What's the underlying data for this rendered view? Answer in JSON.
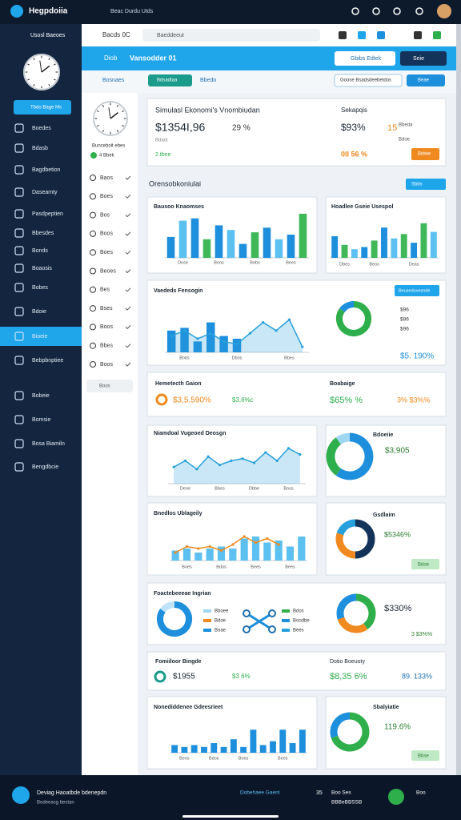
{
  "top_bar": {
    "app_name": "Hegpdoiia",
    "search": "Beac Durdu Utds"
  },
  "browser": {
    "tab": "Usosl Baeoes",
    "nav": "Bacds 0C",
    "url": "Baeddeeut"
  },
  "sidebar": {
    "button": "Tbdo Bage Ms",
    "items": [
      "Boedes",
      "Bdasb",
      "Bagdbetion",
      "Daseamty",
      "Pasdpeptien",
      "Bbesdes",
      "Bonds",
      "Boaosis",
      "Bobes",
      "Bdoie",
      "Bioeie",
      "Bebpbnptiee",
      "Bobeie",
      "Bomsie",
      "Bosa Biamiln",
      "Bengdbcie"
    ]
  },
  "panel": {
    "title": "Bosnaes",
    "clock_label": "Bunceboit ebes",
    "status": "4 Bbek",
    "items": [
      "Baos",
      "Boes",
      "Bos",
      "Boos",
      "Boes",
      "Beoes",
      "Bes",
      "Bses",
      "Boos",
      "Bbes",
      "Boos"
    ],
    "search": "Boos"
  },
  "header": {
    "tab": "Diob",
    "title": "Vansodder 01",
    "button_primary": "Gbibs Edtek",
    "button_secondary": "Seie",
    "subtab_active": "Bdsadtaa",
    "subtab": "Bbedo",
    "wide_button": "Goose Bsadsdeebetdos",
    "small_button": "Beae"
  },
  "summary": {
    "title": "Simulasl Ekonomi's Vnombiudan",
    "value": "$1354I,96",
    "change": "29 %",
    "note": "Bdaot",
    "footer": "2.tbee",
    "right_title": "Sekapqis",
    "right_value": "$93%",
    "right_count": "15",
    "right_note": "Bbeda",
    "right_note2": "Bdoe",
    "right_footer": "0II 56 %",
    "button": "Bdiwe"
  },
  "section": {
    "title": "Orensobkoniulai",
    "button": "Sbbs"
  },
  "wide_card": {
    "button": "Beuseduvesnde",
    "labels": [
      "$96",
      "$86",
      "$96"
    ],
    "value": "$5. 190%"
  },
  "stats_card": {
    "title": "Hemetecth Gaion",
    "value": "$3,5.590%",
    "value2": "$3,6%c",
    "right_title": "Boabaige",
    "right_value": "$65% %",
    "right_value2": "3% $3%%"
  },
  "donut_texts": {
    "a": "$3,905",
    "b": "$5346%",
    "c": "$330%",
    "d": "3 $3%%",
    "e": "119.6%",
    "button": "Bdoe",
    "button2": "Bbse"
  },
  "network_card": {
    "legend": [
      "Bboee",
      "Bdoe",
      "Boae"
    ],
    "legend2": [
      "Bdos",
      "Boodbe",
      "Bees"
    ]
  },
  "stats_card2": {
    "title": "Fomiiloor Bingde",
    "value": "$1955",
    "value2": "$3 6%",
    "right_title": "Dotio Boeuoty",
    "right_value": "$8,35 6%",
    "right_value2": "89. 133%"
  },
  "bottom_bar": {
    "title": "Deviag Haoatbde bdenepdn",
    "subtitle": "Bodeeasg bestan",
    "link": "Dobehaee Gaent",
    "count": "35",
    "stat": "Boo Ses",
    "stat2": "BBBeBBSSB",
    "badge": "Boo"
  },
  "chart_data": [
    {
      "type": "bar",
      "title": "Bausoo Knaomses",
      "categories": [
        null,
        "Dose",
        null,
        null,
        "Boos",
        null,
        null,
        "Bobs",
        null,
        null,
        "Bees",
        null
      ],
      "values": [
        45,
        80,
        85,
        40,
        70,
        60,
        30,
        55,
        65,
        40,
        50,
        95
      ],
      "colors": [
        "#1e8fdc",
        "#5cc0f0",
        "#1e8fdc",
        "#40b85a",
        "#1e8fdc",
        "#5cc0f0",
        "#1e8fdc",
        "#40b85a",
        "#1e8fdc",
        "#5cc0f0",
        "#1e8fdc",
        "#40b85a"
      ],
      "ylim": [
        0,
        100
      ]
    },
    {
      "type": "bar",
      "title": "Hoadlee Gseie Usespol",
      "categories": [
        null,
        "Dbes",
        null,
        null,
        "Beos",
        null,
        null,
        null,
        "Deas",
        null,
        null
      ],
      "values": [
        50,
        30,
        20,
        25,
        40,
        70,
        45,
        55,
        35,
        80,
        60
      ],
      "colors": [
        "#1e8fdc",
        "#40b85a",
        "#5cc0f0",
        "#1e8fdc",
        "#40b85a",
        "#1e8fdc",
        "#5cc0f0",
        "#40b85a",
        "#1e8fdc",
        "#40b85a",
        "#5cc0f0"
      ],
      "ylim": [
        0,
        100
      ]
    },
    {
      "type": "combo",
      "title": "Vaededs Fensogin",
      "categories": [
        null,
        "Bobs",
        null,
        null,
        null,
        "Dbos",
        null,
        null,
        null,
        "Bbes",
        null
      ],
      "series": [
        {
          "kind": "bar",
          "color": "#1e8fdc",
          "values": [
            40,
            45,
            20,
            55,
            30,
            25,
            null,
            null,
            null,
            null,
            null
          ]
        },
        {
          "kind": "area",
          "color": "#28a0dc",
          "values": [
            30,
            40,
            25,
            35,
            20,
            15,
            35,
            55,
            40,
            60,
            10
          ]
        }
      ],
      "ylim": [
        0,
        100
      ]
    },
    {
      "type": "pie",
      "values": [
        85,
        15
      ],
      "colors": [
        "#2fae4c",
        "#1e8fdc"
      ]
    },
    {
      "type": "area",
      "title": "Niamdoal Vugeoed Deosgn",
      "categories": [
        null,
        "Deoe",
        null,
        null,
        "Bbes",
        null,
        null,
        "Dbbe",
        null,
        null,
        "Boss",
        null
      ],
      "values": [
        40,
        55,
        35,
        65,
        45,
        55,
        60,
        50,
        75,
        55,
        85,
        70
      ],
      "color": "#28a0dc",
      "ylim": [
        0,
        100
      ]
    },
    {
      "type": "pie",
      "title": "Bdoeiie",
      "values": [
        60,
        30,
        10
      ],
      "colors": [
        "#1e8fdc",
        "#2fae4c",
        "#9fd6f2"
      ]
    },
    {
      "type": "combo",
      "title": "Bnedlos Ublageily",
      "categories": [
        null,
        "Boes",
        null,
        null,
        "Bdos",
        null,
        null,
        "Bees",
        null,
        null,
        "Bees",
        null
      ],
      "series": [
        {
          "kind": "bar",
          "color": "#5cc0f0",
          "values": [
            25,
            30,
            20,
            30,
            35,
            30,
            55,
            60,
            45,
            50,
            35,
            60
          ]
        },
        {
          "kind": "line",
          "color": "#f08a20",
          "values": [
            20,
            35,
            30,
            35,
            25,
            40,
            60,
            45,
            55,
            40,
            null,
            null
          ]
        }
      ],
      "ylim": [
        0,
        100
      ]
    },
    {
      "type": "pie",
      "title": "Gsdlaim",
      "values": [
        50,
        30,
        20
      ],
      "colors": [
        "#13335a",
        "#f08a20",
        "#28a0dc"
      ]
    },
    {
      "type": "pie",
      "title": "Foactebeeeae Ingrian",
      "values": [
        85,
        15
      ],
      "colors": [
        "#1e8fdc",
        "#bfe3f7"
      ]
    },
    {
      "type": "pie",
      "values": [
        40,
        30,
        30
      ],
      "colors": [
        "#2fae4c",
        "#f08a20",
        "#1e8fdc"
      ]
    },
    {
      "type": "bar",
      "title": "Nonediddenee Gdeesrieet",
      "categories": [
        null,
        "Beos",
        null,
        null,
        "Bdos",
        null,
        null,
        "Boes",
        null,
        null,
        null,
        "Bees",
        null,
        null
      ],
      "values": [
        20,
        15,
        20,
        15,
        25,
        15,
        35,
        15,
        60,
        20,
        30,
        60,
        25,
        60
      ],
      "colors": [
        "#1e8fdc",
        "#1e8fdc",
        "#1e8fdc",
        "#1e8fdc",
        "#1e8fdc",
        "#1e8fdc",
        "#1e8fdc",
        "#1e8fdc",
        "#1e8fdc",
        "#1e8fdc",
        "#1e8fdc",
        "#1e8fdc",
        "#1e8fdc",
        "#1e8fdc"
      ],
      "ylim": [
        0,
        100
      ]
    },
    {
      "type": "pie",
      "title": "Sbalyiatie",
      "values": [
        70,
        30
      ],
      "colors": [
        "#2fae4c",
        "#1e8fdc"
      ]
    }
  ]
}
